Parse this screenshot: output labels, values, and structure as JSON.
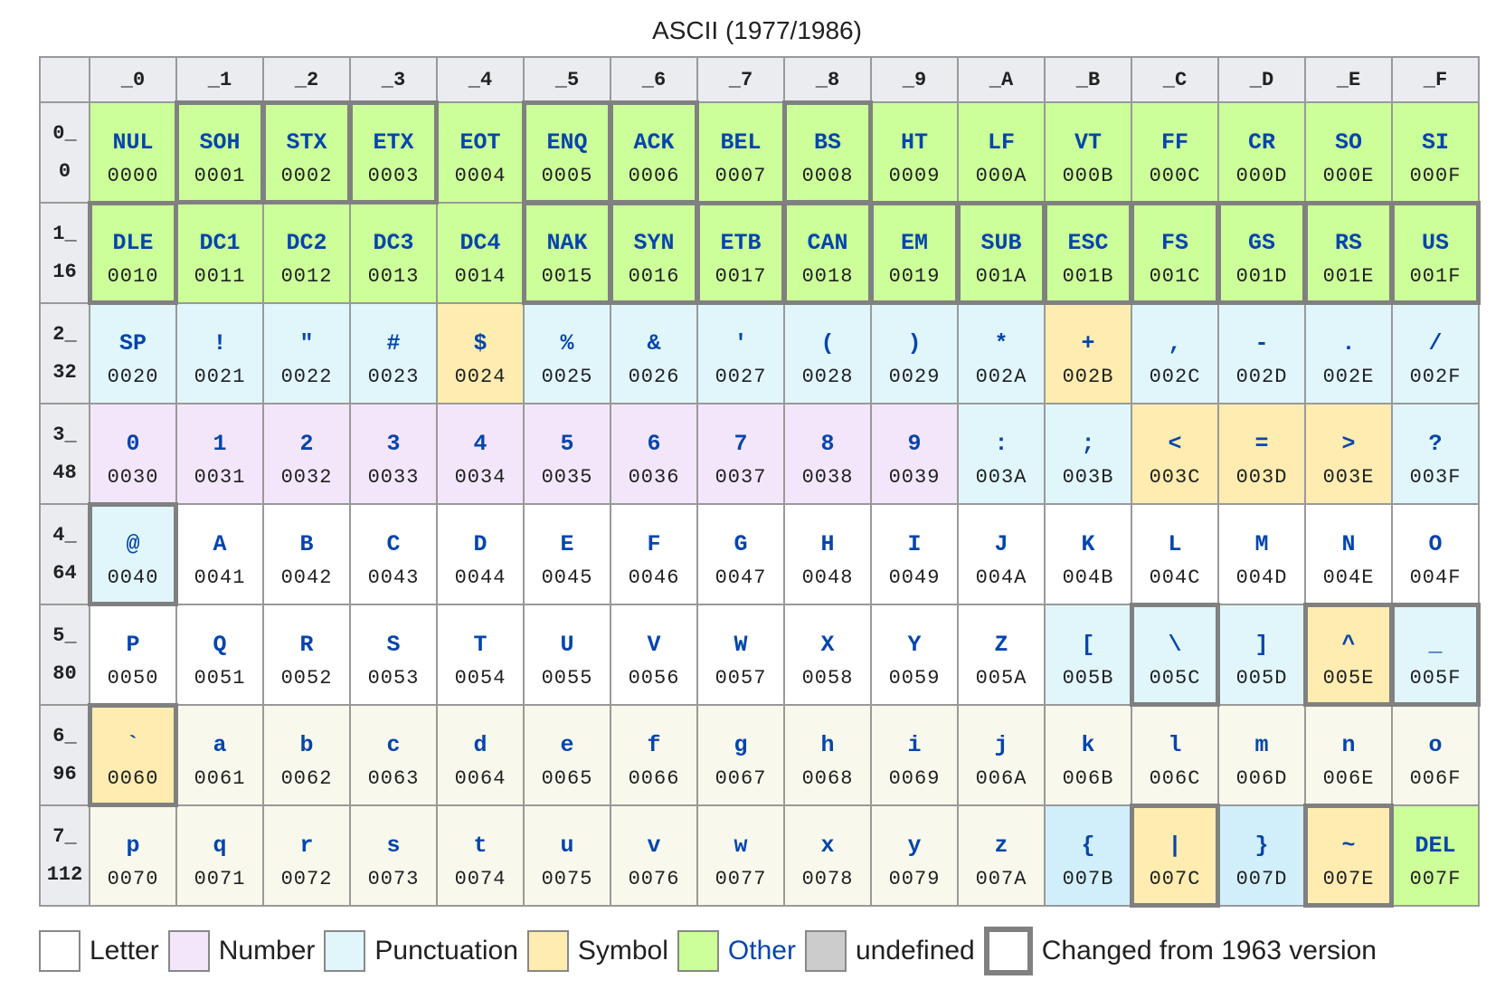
{
  "title": "ASCII (1977/1986)",
  "colors": {
    "letter": "#ffffff",
    "lower": "#f8f9ec",
    "number": "#f3e6fa",
    "punct": "#e0f6fb",
    "punct2": "#d0effb",
    "symbol": "#feecb0",
    "other": "#ccff99",
    "undefined": "#cccccc",
    "changed_border": "#808080"
  },
  "columns": [
    "_0",
    "_1",
    "_2",
    "_3",
    "_4",
    "_5",
    "_6",
    "_7",
    "_8",
    "_9",
    "_A",
    "_B",
    "_C",
    "_D",
    "_E",
    "_F"
  ],
  "rows": [
    {
      "hex": "0_",
      "dec": "0",
      "cells": [
        [
          "NUL",
          "0000",
          "other",
          0
        ],
        [
          "SOH",
          "0001",
          "other",
          1
        ],
        [
          "STX",
          "0002",
          "other",
          1
        ],
        [
          "ETX",
          "0003",
          "other",
          1
        ],
        [
          "EOT",
          "0004",
          "other",
          0
        ],
        [
          "ENQ",
          "0005",
          "other",
          1
        ],
        [
          "ACK",
          "0006",
          "other",
          1
        ],
        [
          "BEL",
          "0007",
          "other",
          0
        ],
        [
          "BS",
          "0008",
          "other",
          1
        ],
        [
          "HT",
          "0009",
          "other",
          0
        ],
        [
          "LF",
          "000A",
          "other",
          0
        ],
        [
          "VT",
          "000B",
          "other",
          0
        ],
        [
          "FF",
          "000C",
          "other",
          0
        ],
        [
          "CR",
          "000D",
          "other",
          0
        ],
        [
          "SO",
          "000E",
          "other",
          0
        ],
        [
          "SI",
          "000F",
          "other",
          0
        ]
      ]
    },
    {
      "hex": "1_",
      "dec": "16",
      "cells": [
        [
          "DLE",
          "0010",
          "other",
          1
        ],
        [
          "DC1",
          "0011",
          "other",
          0
        ],
        [
          "DC2",
          "0012",
          "other",
          0
        ],
        [
          "DC3",
          "0013",
          "other",
          0
        ],
        [
          "DC4",
          "0014",
          "other",
          0
        ],
        [
          "NAK",
          "0015",
          "other",
          1
        ],
        [
          "SYN",
          "0016",
          "other",
          1
        ],
        [
          "ETB",
          "0017",
          "other",
          1
        ],
        [
          "CAN",
          "0018",
          "other",
          1
        ],
        [
          "EM",
          "0019",
          "other",
          1
        ],
        [
          "SUB",
          "001A",
          "other",
          1
        ],
        [
          "ESC",
          "001B",
          "other",
          1
        ],
        [
          "FS",
          "001C",
          "other",
          1
        ],
        [
          "GS",
          "001D",
          "other",
          1
        ],
        [
          "RS",
          "001E",
          "other",
          1
        ],
        [
          "US",
          "001F",
          "other",
          1
        ]
      ]
    },
    {
      "hex": "2_",
      "dec": "32",
      "cells": [
        [
          "SP",
          "0020",
          "punct",
          0
        ],
        [
          "!",
          "0021",
          "punct",
          0
        ],
        [
          "\"",
          "0022",
          "punct",
          0
        ],
        [
          "#",
          "0023",
          "punct",
          0
        ],
        [
          "$",
          "0024",
          "symbol",
          0
        ],
        [
          "%",
          "0025",
          "punct",
          0
        ],
        [
          "&",
          "0026",
          "punct",
          0
        ],
        [
          "'",
          "0027",
          "punct",
          0
        ],
        [
          "(",
          "0028",
          "punct",
          0
        ],
        [
          ")",
          "0029",
          "punct",
          0
        ],
        [
          "*",
          "002A",
          "punct",
          0
        ],
        [
          "+",
          "002B",
          "symbol",
          0
        ],
        [
          ",",
          "002C",
          "punct",
          0
        ],
        [
          "-",
          "002D",
          "punct",
          0
        ],
        [
          ".",
          "002E",
          "punct",
          0
        ],
        [
          "/",
          "002F",
          "punct",
          0
        ]
      ]
    },
    {
      "hex": "3_",
      "dec": "48",
      "cells": [
        [
          "0",
          "0030",
          "number",
          0
        ],
        [
          "1",
          "0031",
          "number",
          0
        ],
        [
          "2",
          "0032",
          "number",
          0
        ],
        [
          "3",
          "0033",
          "number",
          0
        ],
        [
          "4",
          "0034",
          "number",
          0
        ],
        [
          "5",
          "0035",
          "number",
          0
        ],
        [
          "6",
          "0036",
          "number",
          0
        ],
        [
          "7",
          "0037",
          "number",
          0
        ],
        [
          "8",
          "0038",
          "number",
          0
        ],
        [
          "9",
          "0039",
          "number",
          0
        ],
        [
          ":",
          "003A",
          "punct",
          0
        ],
        [
          ";",
          "003B",
          "punct",
          0
        ],
        [
          "<",
          "003C",
          "symbol",
          0
        ],
        [
          "=",
          "003D",
          "symbol",
          0
        ],
        [
          ">",
          "003E",
          "symbol",
          0
        ],
        [
          "?",
          "003F",
          "punct",
          0
        ]
      ]
    },
    {
      "hex": "4_",
      "dec": "64",
      "cells": [
        [
          "@",
          "0040",
          "punct",
          1
        ],
        [
          "A",
          "0041",
          "letter",
          0
        ],
        [
          "B",
          "0042",
          "letter",
          0
        ],
        [
          "C",
          "0043",
          "letter",
          0
        ],
        [
          "D",
          "0044",
          "letter",
          0
        ],
        [
          "E",
          "0045",
          "letter",
          0
        ],
        [
          "F",
          "0046",
          "letter",
          0
        ],
        [
          "G",
          "0047",
          "letter",
          0
        ],
        [
          "H",
          "0048",
          "letter",
          0
        ],
        [
          "I",
          "0049",
          "letter",
          0
        ],
        [
          "J",
          "004A",
          "letter",
          0
        ],
        [
          "K",
          "004B",
          "letter",
          0
        ],
        [
          "L",
          "004C",
          "letter",
          0
        ],
        [
          "M",
          "004D",
          "letter",
          0
        ],
        [
          "N",
          "004E",
          "letter",
          0
        ],
        [
          "O",
          "004F",
          "letter",
          0
        ]
      ]
    },
    {
      "hex": "5_",
      "dec": "80",
      "cells": [
        [
          "P",
          "0050",
          "letter",
          0
        ],
        [
          "Q",
          "0051",
          "letter",
          0
        ],
        [
          "R",
          "0052",
          "letter",
          0
        ],
        [
          "S",
          "0053",
          "letter",
          0
        ],
        [
          "T",
          "0054",
          "letter",
          0
        ],
        [
          "U",
          "0055",
          "letter",
          0
        ],
        [
          "V",
          "0056",
          "letter",
          0
        ],
        [
          "W",
          "0057",
          "letter",
          0
        ],
        [
          "X",
          "0058",
          "letter",
          0
        ],
        [
          "Y",
          "0059",
          "letter",
          0
        ],
        [
          "Z",
          "005A",
          "letter",
          0
        ],
        [
          "[",
          "005B",
          "punct",
          0
        ],
        [
          "\\",
          "005C",
          "punct",
          1
        ],
        [
          "]",
          "005D",
          "punct",
          0
        ],
        [
          "^",
          "005E",
          "symbol",
          1
        ],
        [
          "_",
          "005F",
          "punct",
          1
        ]
      ]
    },
    {
      "hex": "6_",
      "dec": "96",
      "cells": [
        [
          "`",
          "0060",
          "symbol",
          1
        ],
        [
          "a",
          "0061",
          "lower",
          0
        ],
        [
          "b",
          "0062",
          "lower",
          0
        ],
        [
          "c",
          "0063",
          "lower",
          0
        ],
        [
          "d",
          "0064",
          "lower",
          0
        ],
        [
          "e",
          "0065",
          "lower",
          0
        ],
        [
          "f",
          "0066",
          "lower",
          0
        ],
        [
          "g",
          "0067",
          "lower",
          0
        ],
        [
          "h",
          "0068",
          "lower",
          0
        ],
        [
          "i",
          "0069",
          "lower",
          0
        ],
        [
          "j",
          "006A",
          "lower",
          0
        ],
        [
          "k",
          "006B",
          "lower",
          0
        ],
        [
          "l",
          "006C",
          "lower",
          0
        ],
        [
          "m",
          "006D",
          "lower",
          0
        ],
        [
          "n",
          "006E",
          "lower",
          0
        ],
        [
          "o",
          "006F",
          "lower",
          0
        ]
      ]
    },
    {
      "hex": "7_",
      "dec": "112",
      "cells": [
        [
          "p",
          "0070",
          "lower",
          0
        ],
        [
          "q",
          "0071",
          "lower",
          0
        ],
        [
          "r",
          "0072",
          "lower",
          0
        ],
        [
          "s",
          "0073",
          "lower",
          0
        ],
        [
          "t",
          "0074",
          "lower",
          0
        ],
        [
          "u",
          "0075",
          "lower",
          0
        ],
        [
          "v",
          "0076",
          "lower",
          0
        ],
        [
          "w",
          "0077",
          "lower",
          0
        ],
        [
          "x",
          "0078",
          "lower",
          0
        ],
        [
          "y",
          "0079",
          "lower",
          0
        ],
        [
          "z",
          "007A",
          "lower",
          0
        ],
        [
          "{",
          "007B",
          "punct2",
          0
        ],
        [
          "|",
          "007C",
          "symbol",
          1
        ],
        [
          "}",
          "007D",
          "punct2",
          0
        ],
        [
          "~",
          "007E",
          "symbol",
          1
        ],
        [
          "DEL",
          "007F",
          "other",
          0
        ]
      ]
    }
  ],
  "legend": {
    "letter": "Letter",
    "number": "Number",
    "punctuation": "Punctuation",
    "symbol": "Symbol",
    "other": "Other",
    "undefined": "undefined",
    "changed": "Changed from 1963 version"
  }
}
